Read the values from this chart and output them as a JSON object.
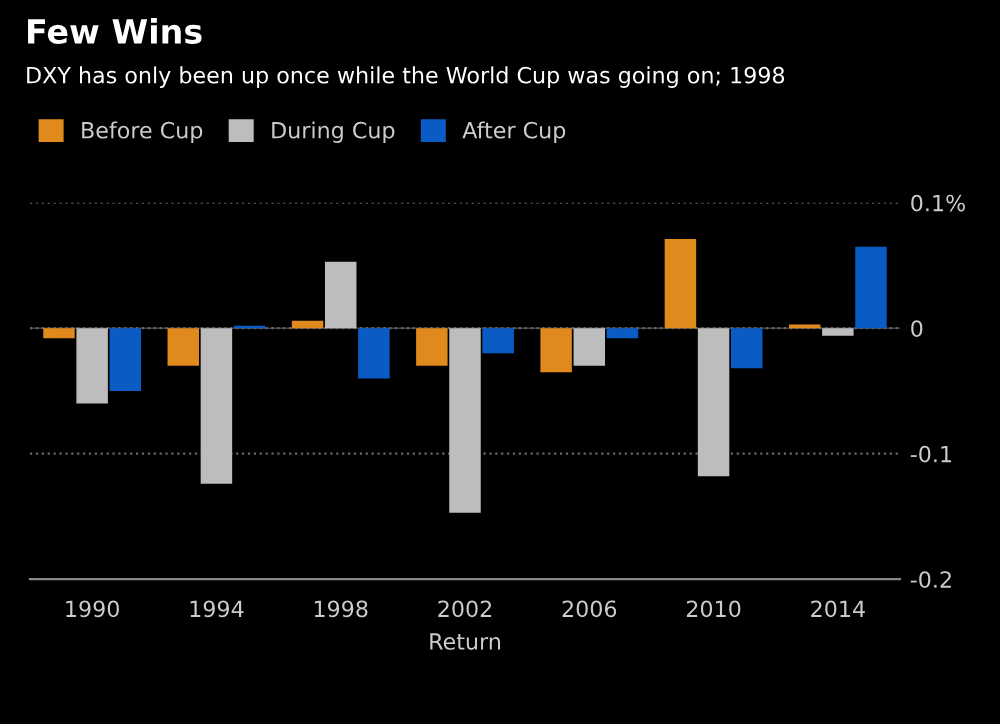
{
  "chart_data": {
    "type": "bar",
    "title": "Few Wins",
    "subtitle": "DXY has only been up once while the World Cup was going on; 1998",
    "xlabel": "Return",
    "categories": [
      "1990",
      "1994",
      "1998",
      "2002",
      "2006",
      "2010",
      "2014"
    ],
    "series": [
      {
        "name": "Before Cup",
        "color": "#e08a1e",
        "values": [
          -0.008,
          -0.03,
          0.006,
          -0.03,
          -0.035,
          0.071,
          0.003
        ]
      },
      {
        "name": "During Cup",
        "color": "#bdbdbd",
        "values": [
          -0.06,
          -0.124,
          0.053,
          -0.147,
          -0.03,
          -0.118,
          -0.006
        ]
      },
      {
        "name": "After Cup",
        "color": "#0a5bc4",
        "values": [
          -0.05,
          0.002,
          -0.04,
          -0.02,
          -0.008,
          -0.032,
          0.065
        ]
      }
    ],
    "ylim": [
      -0.2,
      0.1
    ],
    "yticks": [
      {
        "value": 0.1,
        "label": "0.1%"
      },
      0,
      -0.1,
      -0.2
    ],
    "grid": "y",
    "legend": "top left"
  }
}
